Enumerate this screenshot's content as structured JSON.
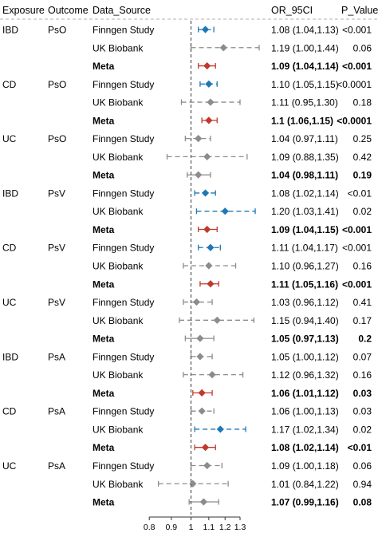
{
  "headers": {
    "exposure": "Exposure",
    "outcome": "Outcome",
    "source": "Data_Source",
    "or": "OR_95CI",
    "p": "P_Value"
  },
  "axis": {
    "ticks": [
      0.8,
      0.9,
      1,
      1.1,
      1.2,
      1.3
    ],
    "tick_labels": [
      "0.8",
      "0.9",
      "1",
      "1.1",
      "1.2",
      "1.3"
    ],
    "reference": 1,
    "xlim": [
      0.75,
      1.45
    ]
  },
  "colors": {
    "significant": "#1f77b4",
    "meta_significant": "#c0392b",
    "not_significant": "#8c8c8c"
  },
  "chart_data": {
    "type": "forest",
    "x_scale": "log",
    "rows": [
      {
        "exposure": "IBD",
        "outcome": "PsO",
        "source": "Finngen Study",
        "or": 1.08,
        "lo": 1.04,
        "hi": 1.13,
        "or_text": "1.08 (1.04,1.13)",
        "p_text": "<0.001",
        "meta": false,
        "sig": true
      },
      {
        "exposure": "",
        "outcome": "",
        "source": "UK Biobank",
        "or": 1.19,
        "lo": 1.0,
        "hi": 1.44,
        "or_text": "1.19 (1.00,1.44)",
        "p_text": "0.06",
        "meta": false,
        "sig": false
      },
      {
        "exposure": "",
        "outcome": "",
        "source": "Meta",
        "or": 1.09,
        "lo": 1.04,
        "hi": 1.14,
        "or_text": "1.09 (1.04,1.14)",
        "p_text": "<0.001",
        "meta": true,
        "sig": true
      },
      {
        "exposure": "CD",
        "outcome": "PsO",
        "source": "Finngen Study",
        "or": 1.1,
        "lo": 1.05,
        "hi": 1.15,
        "or_text": "1.10 (1.05,1.15)",
        "p_text": "<0.0001",
        "meta": false,
        "sig": true
      },
      {
        "exposure": "",
        "outcome": "",
        "source": "UK Biobank",
        "or": 1.11,
        "lo": 0.95,
        "hi": 1.3,
        "or_text": "1.11 (0.95,1.30)",
        "p_text": "0.18",
        "meta": false,
        "sig": false
      },
      {
        "exposure": "",
        "outcome": "",
        "source": "Meta",
        "or": 1.1,
        "lo": 1.06,
        "hi": 1.15,
        "or_text": "1.1 (1.06,1.15)",
        "p_text": "<0.0001",
        "meta": true,
        "sig": true
      },
      {
        "exposure": "UC",
        "outcome": "PsO",
        "source": "Finngen Study",
        "or": 1.04,
        "lo": 0.97,
        "hi": 1.11,
        "or_text": "1.04 (0.97,1.11)",
        "p_text": "0.25",
        "meta": false,
        "sig": false
      },
      {
        "exposure": "",
        "outcome": "",
        "source": "UK Biobank",
        "or": 1.09,
        "lo": 0.88,
        "hi": 1.35,
        "or_text": "1.09 (0.88,1.35)",
        "p_text": "0.42",
        "meta": false,
        "sig": false
      },
      {
        "exposure": "",
        "outcome": "",
        "source": "Meta",
        "or": 1.04,
        "lo": 0.98,
        "hi": 1.11,
        "or_text": "1.04 (0.98,1.11)",
        "p_text": "0.19",
        "meta": true,
        "sig": false
      },
      {
        "exposure": "IBD",
        "outcome": "PsV",
        "source": "Finngen Study",
        "or": 1.08,
        "lo": 1.02,
        "hi": 1.14,
        "or_text": "1.08 (1.02,1.14)",
        "p_text": "<0.01",
        "meta": false,
        "sig": true
      },
      {
        "exposure": "",
        "outcome": "",
        "source": "UK Biobank",
        "or": 1.2,
        "lo": 1.03,
        "hi": 1.41,
        "or_text": "1.20 (1.03,1.41)",
        "p_text": "0.02",
        "meta": false,
        "sig": true
      },
      {
        "exposure": "",
        "outcome": "",
        "source": "Meta",
        "or": 1.09,
        "lo": 1.04,
        "hi": 1.15,
        "or_text": "1.09 (1.04,1.15)",
        "p_text": "<0.001",
        "meta": true,
        "sig": true
      },
      {
        "exposure": "CD",
        "outcome": "PsV",
        "source": "Finngen Study",
        "or": 1.11,
        "lo": 1.04,
        "hi": 1.17,
        "or_text": "1.11 (1.04,1.17)",
        "p_text": "<0.001",
        "meta": false,
        "sig": true
      },
      {
        "exposure": "",
        "outcome": "",
        "source": "UK Biobank",
        "or": 1.1,
        "lo": 0.96,
        "hi": 1.27,
        "or_text": "1.10 (0.96,1.27)",
        "p_text": "0.16",
        "meta": false,
        "sig": false
      },
      {
        "exposure": "",
        "outcome": "",
        "source": "Meta",
        "or": 1.11,
        "lo": 1.05,
        "hi": 1.16,
        "or_text": "1.11 (1.05,1.16)",
        "p_text": "<0.001",
        "meta": true,
        "sig": true
      },
      {
        "exposure": "UC",
        "outcome": "PsV",
        "source": "Finngen Study",
        "or": 1.03,
        "lo": 0.96,
        "hi": 1.12,
        "or_text": "1.03 (0.96,1.12)",
        "p_text": "0.41",
        "meta": false,
        "sig": false
      },
      {
        "exposure": "",
        "outcome": "",
        "source": "UK Biobank",
        "or": 1.15,
        "lo": 0.94,
        "hi": 1.4,
        "or_text": "1.15 (0.94,1.40)",
        "p_text": "0.17",
        "meta": false,
        "sig": false
      },
      {
        "exposure": "",
        "outcome": "",
        "source": "Meta",
        "or": 1.05,
        "lo": 0.97,
        "hi": 1.13,
        "or_text": "1.05 (0.97,1.13)",
        "p_text": "0.2",
        "meta": true,
        "sig": false
      },
      {
        "exposure": "IBD",
        "outcome": "PsA",
        "source": "Finngen Study",
        "or": 1.05,
        "lo": 1.0,
        "hi": 1.12,
        "or_text": "1.05 (1.00,1.12)",
        "p_text": "0.07",
        "meta": false,
        "sig": false
      },
      {
        "exposure": "",
        "outcome": "",
        "source": "UK Biobank",
        "or": 1.12,
        "lo": 0.96,
        "hi": 1.32,
        "or_text": "1.12 (0.96,1.32)",
        "p_text": "0.16",
        "meta": false,
        "sig": false
      },
      {
        "exposure": "",
        "outcome": "",
        "source": "Meta",
        "or": 1.06,
        "lo": 1.01,
        "hi": 1.12,
        "or_text": "1.06 (1.01,1.12)",
        "p_text": "0.03",
        "meta": true,
        "sig": true
      },
      {
        "exposure": "CD",
        "outcome": "PsA",
        "source": "Finngen Study",
        "or": 1.06,
        "lo": 1.0,
        "hi": 1.13,
        "or_text": "1.06 (1.00,1.13)",
        "p_text": "0.03",
        "meta": false,
        "sig": false
      },
      {
        "exposure": "",
        "outcome": "",
        "source": "UK Biobank",
        "or": 1.17,
        "lo": 1.02,
        "hi": 1.34,
        "or_text": "1.17 (1.02,1.34)",
        "p_text": "0.02",
        "meta": false,
        "sig": true
      },
      {
        "exposure": "",
        "outcome": "",
        "source": "Meta",
        "or": 1.08,
        "lo": 1.02,
        "hi": 1.14,
        "or_text": "1.08 (1.02,1.14)",
        "p_text": "<0.01",
        "meta": true,
        "sig": true
      },
      {
        "exposure": "UC",
        "outcome": "PsA",
        "source": "Finngen Study",
        "or": 1.09,
        "lo": 1.0,
        "hi": 1.18,
        "or_text": "1.09 (1.00,1.18)",
        "p_text": "0.06",
        "meta": false,
        "sig": false
      },
      {
        "exposure": "",
        "outcome": "",
        "source": "UK Biobank",
        "or": 1.01,
        "lo": 0.84,
        "hi": 1.22,
        "or_text": "1.01 (0.84,1.22)",
        "p_text": "0.94",
        "meta": false,
        "sig": false
      },
      {
        "exposure": "",
        "outcome": "",
        "source": "Meta",
        "or": 1.07,
        "lo": 0.99,
        "hi": 1.16,
        "or_text": "1.07 (0.99,1.16)",
        "p_text": "0.08",
        "meta": true,
        "sig": false
      }
    ]
  }
}
